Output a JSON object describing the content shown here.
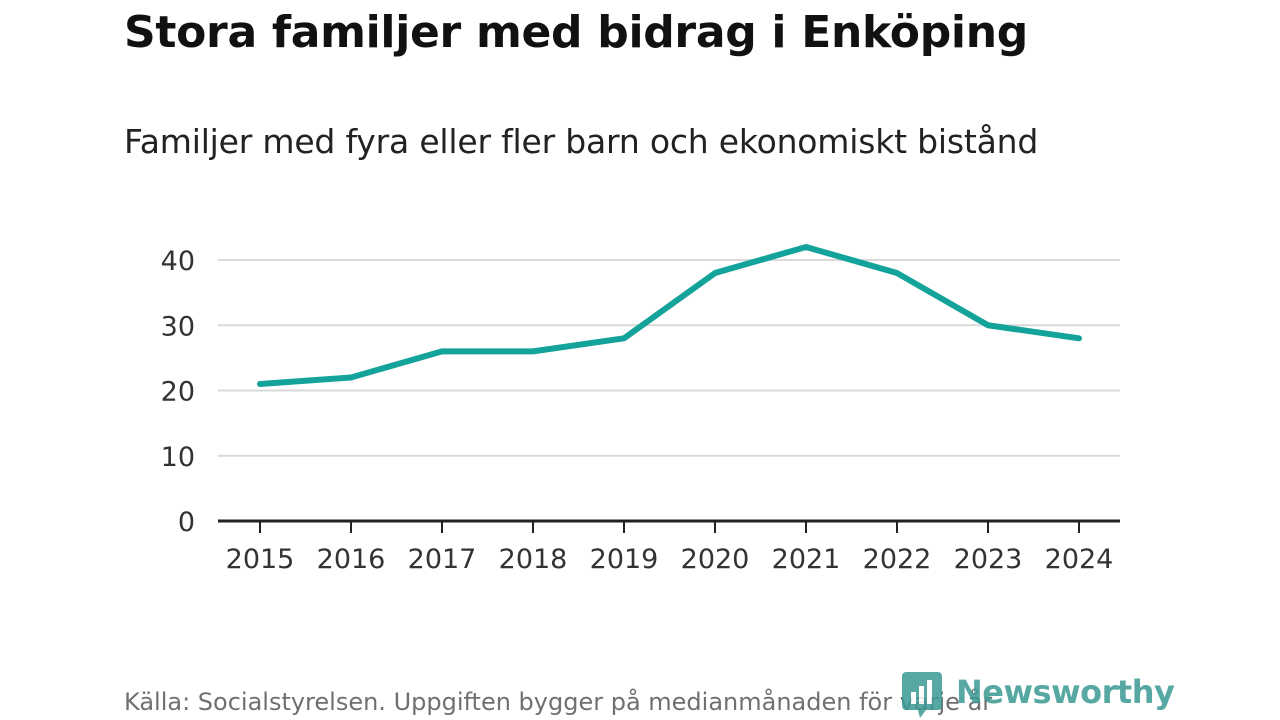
{
  "header": {
    "title": "Stora familjer med bidrag i Enköping",
    "subtitle": "Familjer med fyra eller fler barn och ekonomiskt bistånd"
  },
  "footer": {
    "source": "Källa: Socialstyrelsen. Uppgiften bygger på medianmånaden för varje år",
    "brand": "Newsworthy"
  },
  "colors": {
    "line": "#14a39a",
    "grid": "#d9d9d9",
    "axis": "#222222",
    "brand": "#3a9a94"
  },
  "chart_data": {
    "type": "line",
    "title": "Stora familjer med bidrag i Enköping",
    "subtitle": "Familjer med fyra eller fler barn och ekonomiskt bistånd",
    "xlabel": "",
    "ylabel": "",
    "x": [
      "2015",
      "2016",
      "2017",
      "2018",
      "2019",
      "2020",
      "2021",
      "2022",
      "2023",
      "2024"
    ],
    "series": [
      {
        "name": "Familjer med fyra eller fler barn och ekonomiskt bistånd",
        "values": [
          21,
          22,
          26,
          26,
          28,
          38,
          42,
          38,
          30,
          28
        ]
      }
    ],
    "ylim": [
      0,
      40
    ],
    "yticks": [
      0,
      10,
      20,
      30,
      40
    ],
    "grid": true,
    "legend": "none"
  }
}
